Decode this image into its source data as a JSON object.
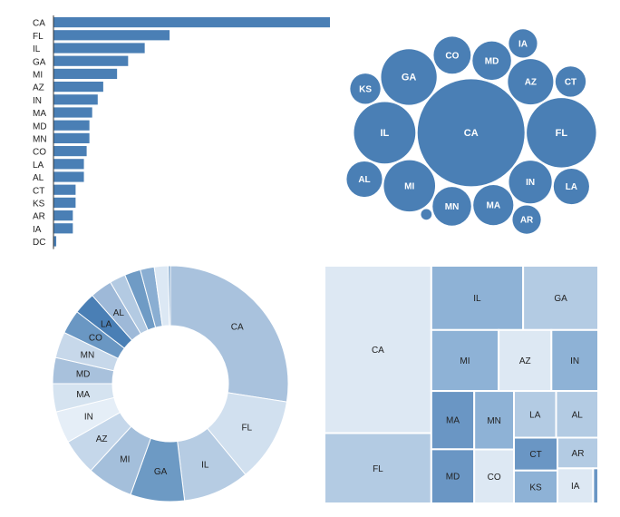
{
  "chart_data": [
    {
      "type": "bar",
      "orientation": "horizontal",
      "categories": [
        "CA",
        "FL",
        "IL",
        "GA",
        "MI",
        "AZ",
        "IN",
        "MA",
        "MD",
        "MN",
        "CO",
        "LA",
        "AL",
        "CT",
        "KS",
        "AR",
        "IA",
        "DC"
      ],
      "values": [
        100,
        42,
        33,
        27,
        23,
        18,
        16,
        14,
        13,
        13,
        12,
        11,
        11,
        8,
        8,
        7,
        7,
        1
      ],
      "color": "#4a7fb5"
    },
    {
      "type": "bubble",
      "categories": [
        "CA",
        "FL",
        "IL",
        "GA",
        "MI",
        "AZ",
        "IN",
        "MA",
        "MD",
        "MN",
        "CO",
        "LA",
        "AL",
        "CT",
        "KS",
        "AR",
        "IA",
        "DC"
      ],
      "values": [
        100,
        42,
        33,
        27,
        23,
        18,
        16,
        14,
        13,
        13,
        12,
        11,
        11,
        8,
        8,
        7,
        7,
        1
      ],
      "color": "#4a7fb5",
      "label_color": "#ffffff"
    },
    {
      "type": "donut",
      "categories": [
        "CA",
        "FL",
        "IL",
        "GA",
        "MI",
        "AZ",
        "IN",
        "MA",
        "MD",
        "MN",
        "CO",
        "LA",
        "AL",
        "CT",
        "KS",
        "AR",
        "IA",
        "DC"
      ],
      "values": [
        100,
        42,
        33,
        27,
        23,
        18,
        16,
        14,
        13,
        13,
        12,
        11,
        11,
        8,
        8,
        7,
        7,
        1
      ],
      "colors": [
        "#a9c2dd",
        "#d1e0ef",
        "#b6cce3",
        "#6d9ac4",
        "#a4bfdb",
        "#c5d7ea",
        "#e5eef7",
        "#d5e3f0",
        "#a8c1dc",
        "#c7d8ea",
        "#6a97c3",
        "#4a7fb5",
        "#9eb9d8",
        "#b3cae2",
        "#6f9bc5",
        "#8aaed2",
        "#dce8f4",
        "#5f8fbe"
      ]
    },
    {
      "type": "treemap",
      "categories": [
        "CA",
        "FL",
        "IL",
        "GA",
        "MI",
        "AZ",
        "IN",
        "MA",
        "MD",
        "MN",
        "CO",
        "LA",
        "AL",
        "CT",
        "KS",
        "AR",
        "IA",
        "DC"
      ],
      "values": [
        100,
        42,
        33,
        27,
        23,
        18,
        16,
        14,
        13,
        13,
        12,
        11,
        11,
        8,
        8,
        7,
        7,
        1
      ],
      "colors": {
        "CA": "#dde8f3",
        "AZ": "#dde8f3",
        "CO": "#dde8f3",
        "IA": "#dde8f3",
        "FL": "#b3cbe3",
        "GA": "#b3cbe3",
        "LA": "#b3cbe3",
        "AL": "#b3cbe3",
        "AR": "#b3cbe3",
        "IL": "#8eb2d6",
        "MI": "#8eb2d6",
        "IN": "#8eb2d6",
        "MN": "#8eb2d6",
        "KS": "#8eb2d6",
        "MA": "#6a96c4",
        "MD": "#6a96c4",
        "CT": "#6a96c4",
        "DC": "#6a96c4"
      }
    }
  ]
}
